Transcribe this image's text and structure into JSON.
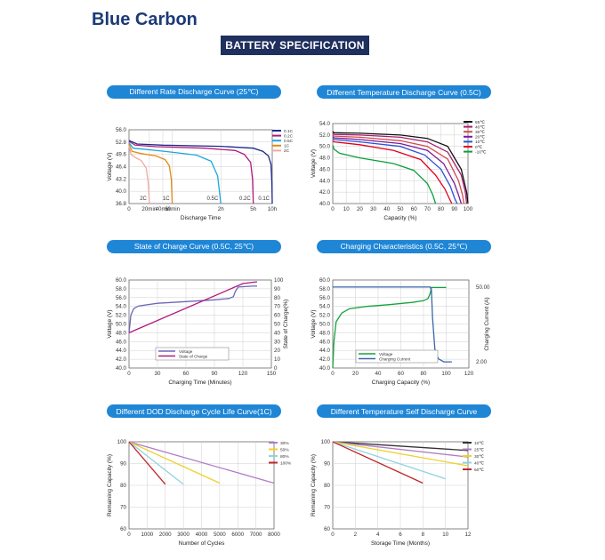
{
  "brand": "Blue Carbon",
  "banner": "BATTERY SPECIFICATION",
  "colors": {
    "brand": "#1b3a78",
    "banner_bg": "#1f2f5e",
    "pill_bg": "#1f86d6"
  },
  "chart_data": [
    {
      "id": "rate",
      "title": "Different Rate Discharge Curve (25℃)",
      "type": "line",
      "ylabel": "Voltage (V)",
      "xlabel": "Discharge Time",
      "ylim": [
        36.8,
        56.0
      ],
      "yticks": [
        "56.0",
        "52.8",
        "49.6",
        "46.4",
        "43.2",
        "40.0",
        "36.8"
      ],
      "xticks": [
        {
          "v": 0,
          "label": "0"
        },
        {
          "v": 20,
          "label": "20min"
        },
        {
          "v": 40,
          "label": "40min"
        },
        {
          "v": 60,
          "label": "60min"
        },
        {
          "v": 120,
          "label": "2h"
        },
        {
          "v": 300,
          "label": "5h"
        },
        {
          "v": 600,
          "label": "10h"
        }
      ],
      "legend": "top-right",
      "grid": true,
      "series": [
        {
          "name": "0.1C",
          "color": "#1c2a8a",
          "label": "0.1C",
          "x": [
            0,
            8,
            40,
            120,
            300,
            450,
            540,
            580,
            595,
            600
          ],
          "y": [
            53.2,
            52.3,
            52.0,
            51.7,
            51.2,
            50.4,
            49.2,
            47.0,
            42.0,
            36.8
          ]
        },
        {
          "name": "0.2C",
          "color": "#b1197d",
          "label": "0.2C",
          "x": [
            0,
            6,
            30,
            100,
            200,
            250,
            285,
            296,
            300
          ],
          "y": [
            53.0,
            52.0,
            51.6,
            51.2,
            50.6,
            49.6,
            47.5,
            43.0,
            36.8
          ]
        },
        {
          "name": "0.5C",
          "color": "#1aa6dd",
          "label": "0.5C",
          "x": [
            0,
            4,
            20,
            50,
            90,
            108,
            116,
            120
          ],
          "y": [
            52.6,
            51.2,
            50.8,
            50.3,
            49.4,
            47.8,
            44.0,
            36.8
          ]
        },
        {
          "name": "1C",
          "color": "#e08a14",
          "label": "1C",
          "x": [
            0,
            3,
            12,
            30,
            45,
            54,
            58,
            60
          ],
          "y": [
            52.2,
            50.4,
            49.8,
            49.2,
            48.2,
            46.6,
            43.0,
            36.8
          ]
        },
        {
          "name": "2C",
          "color": "#f2a8a0",
          "label": "2C",
          "x": [
            0,
            2,
            6,
            12,
            17,
            19,
            20
          ],
          "y": [
            51.8,
            49.6,
            48.8,
            48.0,
            46.0,
            42.0,
            36.8
          ]
        }
      ]
    },
    {
      "id": "temp",
      "title": "Different Temperature Discharge Curve (0.5C)",
      "type": "line",
      "ylabel": "Voltage (V)",
      "xlabel": "Capacity (%)",
      "ylim": [
        40.0,
        54.0
      ],
      "yticks": [
        "54.0",
        "52.0",
        "50.0",
        "48.0",
        "46.0",
        "44.0",
        "42.0",
        "40.0"
      ],
      "xticks": [
        "0",
        "10",
        "20",
        "30",
        "40",
        "50",
        "60",
        "70",
        "80",
        "90",
        "100"
      ],
      "legend": "top-right",
      "grid": true,
      "series": [
        {
          "name": "55℃",
          "color": "#111111",
          "x": [
            0,
            1,
            20,
            50,
            70,
            85,
            95,
            99,
            100
          ],
          "y": [
            52.6,
            52.4,
            52.3,
            52.0,
            51.4,
            50.0,
            46.0,
            42.0,
            40.0
          ]
        },
        {
          "name": "40℃",
          "color": "#a81e6e",
          "x": [
            0,
            1,
            20,
            50,
            70,
            85,
            95,
            98,
            99
          ],
          "y": [
            52.3,
            52.1,
            52.0,
            51.6,
            50.8,
            49.0,
            45.0,
            42.0,
            40.0
          ]
        },
        {
          "name": "30℃",
          "color": "#d64a4a",
          "x": [
            0,
            1,
            20,
            50,
            70,
            85,
            93,
            96,
            97
          ],
          "y": [
            52.0,
            51.8,
            51.6,
            51.0,
            50.0,
            47.8,
            44.0,
            41.5,
            40.0
          ]
        },
        {
          "name": "20℃",
          "color": "#7a1b9a",
          "x": [
            0,
            1,
            20,
            50,
            70,
            82,
            90,
            93,
            95
          ],
          "y": [
            51.7,
            51.5,
            51.2,
            50.5,
            49.3,
            47.0,
            43.5,
            41.5,
            40.0
          ]
        },
        {
          "name": "10℃",
          "color": "#2b52d9",
          "x": [
            0,
            1,
            20,
            50,
            68,
            80,
            87,
            90,
            92
          ],
          "y": [
            51.4,
            51.2,
            50.8,
            50.0,
            48.5,
            46.0,
            43.0,
            41.0,
            40.0
          ]
        },
        {
          "name": "0℃",
          "color": "#e3001b",
          "x": [
            0,
            1,
            20,
            45,
            65,
            76,
            83,
            86,
            88
          ],
          "y": [
            51.0,
            50.8,
            50.3,
            49.3,
            47.7,
            45.0,
            42.5,
            41.0,
            40.0
          ]
        },
        {
          "name": "-10℃",
          "color": "#0b9e3c",
          "x": [
            0,
            1,
            5,
            20,
            45,
            60,
            70,
            74,
            76
          ],
          "y": [
            50.2,
            49.5,
            48.8,
            48.0,
            47.0,
            45.8,
            43.5,
            41.5,
            40.0
          ]
        }
      ]
    },
    {
      "id": "soc",
      "title": "State of Charge Curve (0.5C, 25℃)",
      "type": "line",
      "ylabel": "Voltage (V)",
      "ylabel2": "State of Charge(%)",
      "xlabel": "Charging Time (Minutes)",
      "ylim": [
        40.0,
        60.0
      ],
      "y2lim": [
        0,
        100
      ],
      "yticks": [
        "60.0",
        "58.0",
        "56.0",
        "54.0",
        "52.0",
        "50.0",
        "48.0",
        "46.0",
        "44.0",
        "42.0",
        "40.0"
      ],
      "y2ticks": [
        "100",
        "90",
        "80",
        "70",
        "60",
        "50",
        "40",
        "30",
        "20",
        "10",
        "0"
      ],
      "xticks": [
        "0",
        "30",
        "60",
        "90",
        "120",
        "150"
      ],
      "legend": "bottom-center",
      "grid": true,
      "series": [
        {
          "name": "Voltage",
          "color": "#6b67b8",
          "x": [
            0,
            2,
            5,
            10,
            30,
            60,
            90,
            105,
            110,
            112,
            115,
            130,
            135
          ],
          "y": [
            48.0,
            52.0,
            53.5,
            54.1,
            54.7,
            55.1,
            55.5,
            55.8,
            56.2,
            57.4,
            58.4,
            58.6,
            58.6
          ]
        },
        {
          "name": "State of Charge",
          "color": "#b1197d",
          "axis": "y2",
          "x": [
            0,
            120,
            135
          ],
          "y": [
            40,
            96,
            98
          ]
        }
      ]
    },
    {
      "id": "charging",
      "title": "Charging Characteristics (0.5C, 25℃)",
      "type": "line",
      "ylabel": "Voltage (V)",
      "ylabel2": "Charging Current (A)",
      "xlabel": "Charging Capacity (%)",
      "ylim": [
        40.0,
        60.0
      ],
      "yticks": [
        "60.0",
        "58.0",
        "56.0",
        "54.0",
        "52.0",
        "50.0",
        "48.0",
        "46.0",
        "44.0",
        "42.0",
        "40.0"
      ],
      "y2ticks": [
        {
          "v": 50.0,
          "label": "50.00"
        },
        {
          "v": 2.0,
          "label": "2.00"
        }
      ],
      "xticks": [
        "0",
        "20",
        "40",
        "60",
        "80",
        "100",
        "120"
      ],
      "legend": "bottom-center",
      "grid": true,
      "series": [
        {
          "name": "Voltage",
          "color": "#13a33c",
          "x": [
            0,
            1,
            3,
            8,
            15,
            30,
            50,
            70,
            80,
            84,
            86,
            87,
            100
          ],
          "y": [
            40.0,
            46.0,
            50.5,
            52.5,
            53.5,
            54.0,
            54.4,
            54.9,
            55.3,
            55.8,
            57.0,
            58.3,
            58.3
          ]
        },
        {
          "name": "Charging Current",
          "color": "#3a66a8",
          "axis": "y2",
          "x": [
            0,
            86,
            87,
            88,
            90,
            93,
            98,
            105
          ],
          "y": [
            50.0,
            50.0,
            48.0,
            30.0,
            10.0,
            4.0,
            2.0,
            2.0
          ]
        }
      ]
    },
    {
      "id": "dod",
      "title": "Different DOD Discharge Cycle Life Curve(1C)",
      "type": "line",
      "ylabel": "Remaining Capacity (%)",
      "xlabel": "Number of Cycles",
      "ylim": [
        60,
        100
      ],
      "yticks": [
        "100",
        "90",
        "80",
        "70",
        "60"
      ],
      "xticks": [
        "0",
        "1000",
        "2000",
        "3000",
        "4000",
        "5000",
        "6000",
        "7000",
        "8000"
      ],
      "legend": "top-right",
      "grid": true,
      "series": [
        {
          "name": "30%",
          "color": "#b07cc6",
          "x": [
            0,
            8000
          ],
          "y": [
            100,
            81
          ]
        },
        {
          "name": "50%",
          "color": "#f0d02a",
          "x": [
            0,
            5000
          ],
          "y": [
            100,
            81
          ]
        },
        {
          "name": "80%",
          "color": "#8fd3e0",
          "x": [
            0,
            3000
          ],
          "y": [
            100,
            80.5
          ]
        },
        {
          "name": "100%",
          "color": "#c0262a",
          "x": [
            0,
            2000
          ],
          "y": [
            100,
            80.5
          ]
        }
      ]
    },
    {
      "id": "self",
      "title": "Different Temperature Self Discharge Curve",
      "type": "line",
      "ylabel": "Remaining Capacity (%)",
      "xlabel": "Storage Time (Months)",
      "ylim": [
        60,
        100
      ],
      "yticks": [
        "100",
        "90",
        "80",
        "70",
        "60"
      ],
      "xticks": [
        "0",
        "2",
        "4",
        "6",
        "8",
        "10",
        "12"
      ],
      "legend": "top-right",
      "grid": true,
      "series": [
        {
          "name": "10℃",
          "color": "#333333",
          "x": [
            0,
            12
          ],
          "y": [
            100,
            96
          ]
        },
        {
          "name": "25℃",
          "color": "#b07cc6",
          "x": [
            0,
            12
          ],
          "y": [
            100,
            93
          ]
        },
        {
          "name": "30℃",
          "color": "#f0d02a",
          "x": [
            0,
            12
          ],
          "y": [
            100,
            89
          ]
        },
        {
          "name": "40℃",
          "color": "#8fd3e0",
          "x": [
            0,
            10
          ],
          "y": [
            100,
            83
          ]
        },
        {
          "name": "50℃",
          "color": "#c0262a",
          "x": [
            0,
            8
          ],
          "y": [
            100,
            81
          ]
        }
      ]
    }
  ]
}
